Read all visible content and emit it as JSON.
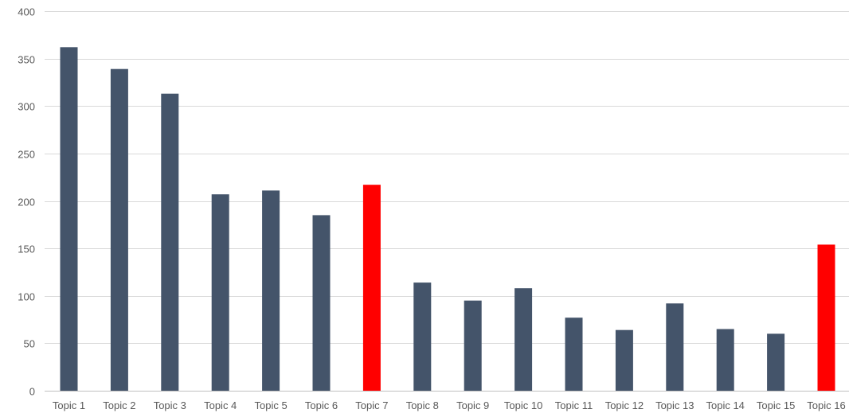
{
  "chart_data": {
    "type": "bar",
    "title": "",
    "xlabel": "",
    "ylabel": "",
    "ylim": [
      0,
      400
    ],
    "yticks": [
      0,
      50,
      100,
      150,
      200,
      250,
      300,
      350,
      400
    ],
    "grid": true,
    "legend": "none",
    "categories": [
      "Topic 1",
      "Topic 2",
      "Topic 3",
      "Topic 4",
      "Topic 5",
      "Topic 6",
      "Topic 7",
      "Topic 8",
      "Topic 9",
      "Topic 10",
      "Topic 11",
      "Topic 12",
      "Topic 13",
      "Topic 14",
      "Topic 15",
      "Topic 16"
    ],
    "values": [
      362,
      339,
      313,
      207,
      211,
      185,
      217,
      114,
      95,
      108,
      77,
      64,
      92,
      65,
      60,
      154
    ],
    "colors": {
      "default": "#44546a",
      "highlight": "#ff0000"
    },
    "highlighted": [
      "Topic 7",
      "Topic 16"
    ]
  }
}
